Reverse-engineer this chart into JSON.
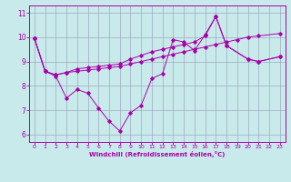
{
  "xlabel": "Windchill (Refroidissement éolien,°C)",
  "xlim": [
    -0.5,
    23.5
  ],
  "ylim": [
    5.7,
    11.3
  ],
  "xticks": [
    0,
    1,
    2,
    3,
    4,
    5,
    6,
    7,
    8,
    9,
    10,
    11,
    12,
    13,
    14,
    15,
    16,
    17,
    18,
    19,
    20,
    21,
    22,
    23
  ],
  "yticks": [
    6,
    7,
    8,
    9,
    10,
    11
  ],
  "background_color": "#c8eaea",
  "grid_color": "#9999bb",
  "line_color": "#aa00aa",
  "line1_x": [
    0,
    1,
    2,
    3,
    4,
    5,
    6,
    7,
    8,
    9,
    10,
    11,
    12,
    13,
    14,
    15,
    16,
    17,
    18,
    20,
    21,
    23
  ],
  "line1_y": [
    9.95,
    8.6,
    8.4,
    7.5,
    7.85,
    7.7,
    7.1,
    6.55,
    6.15,
    6.9,
    7.2,
    8.3,
    8.5,
    9.9,
    9.8,
    9.45,
    10.1,
    10.85,
    9.65,
    9.1,
    9.0,
    9.2
  ],
  "line2_x": [
    0,
    1,
    2,
    3,
    4,
    5,
    6,
    7,
    8,
    9,
    10,
    11,
    12,
    13,
    14,
    15,
    16,
    17,
    18,
    19,
    20,
    21,
    23
  ],
  "line2_y": [
    9.95,
    8.6,
    8.45,
    8.55,
    8.6,
    8.65,
    8.7,
    8.75,
    8.8,
    8.9,
    9.0,
    9.1,
    9.2,
    9.3,
    9.4,
    9.5,
    9.6,
    9.7,
    9.8,
    9.9,
    10.0,
    10.05,
    10.15
  ],
  "line3_x": [
    0,
    1,
    2,
    3,
    4,
    5,
    6,
    7,
    8,
    9,
    10,
    11,
    12,
    13,
    14,
    15,
    16,
    17,
    18,
    20,
    21,
    23
  ],
  "line3_y": [
    9.95,
    8.6,
    8.45,
    8.55,
    8.7,
    8.75,
    8.8,
    8.85,
    8.9,
    9.1,
    9.25,
    9.4,
    9.5,
    9.6,
    9.7,
    9.8,
    10.05,
    10.85,
    9.65,
    9.1,
    9.0,
    9.2
  ]
}
